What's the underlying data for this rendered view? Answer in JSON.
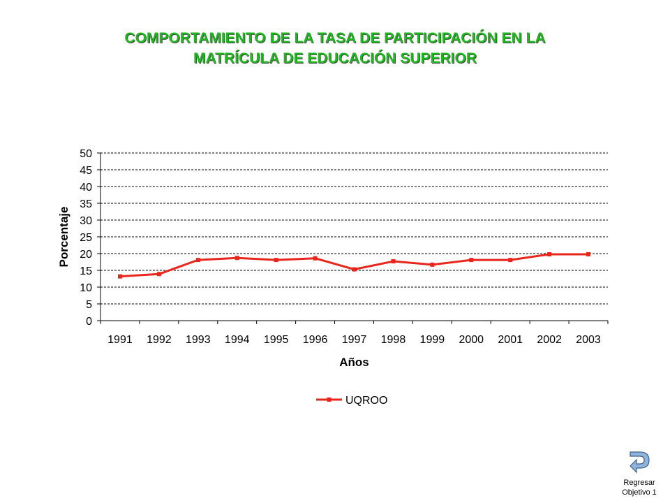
{
  "title": {
    "line1": "COMPORTAMIENTO DE LA TASA DE PARTICIPACIÓN EN LA",
    "line2": "MATRÍCULA DE EDUCACIÓN SUPERIOR"
  },
  "chart_data": {
    "type": "line",
    "title": "",
    "xlabel": "Años",
    "ylabel": "Porcentaje",
    "categories": [
      "1991",
      "1992",
      "1993",
      "1994",
      "1995",
      "1996",
      "1997",
      "1998",
      "1999",
      "2000",
      "2001",
      "2002",
      "2003"
    ],
    "ylim": [
      0,
      50
    ],
    "yticks": [
      0,
      5,
      10,
      15,
      20,
      25,
      30,
      35,
      40,
      45,
      50
    ],
    "grid": "horizontal dashed",
    "legend": "bottom",
    "series": [
      {
        "name": "UQROO",
        "color": "#e8261c",
        "values": [
          13.2,
          13.9,
          18.1,
          18.7,
          18.1,
          18.6,
          15.3,
          17.7,
          16.7,
          18.1,
          18.1,
          19.8,
          19.8
        ]
      }
    ]
  },
  "nav": {
    "icon": "return-arrow-icon",
    "line1": "Regresar",
    "line2": "Objetivo 1"
  }
}
